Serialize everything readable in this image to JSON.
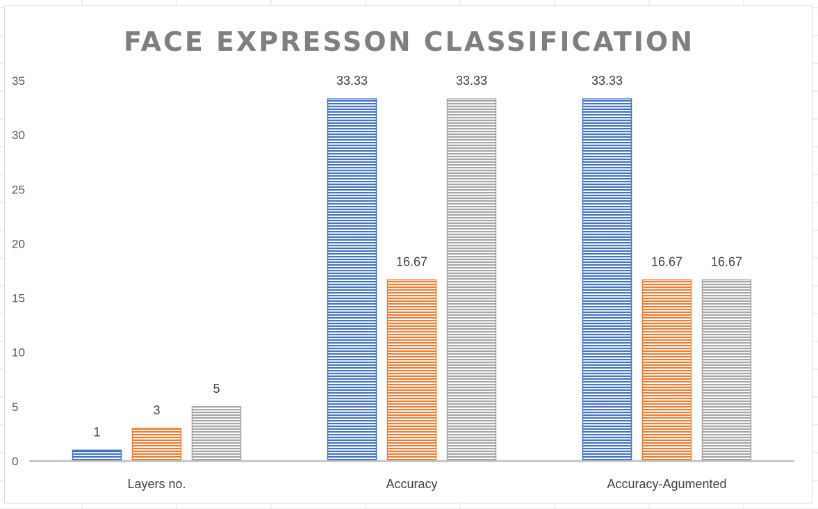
{
  "chart_data": {
    "type": "bar",
    "title": "FACE EXPRESSON CLASSIFICATION",
    "categories": [
      "Layers no.",
      "Accuracy",
      "Accuracy-Agumented"
    ],
    "series": [
      {
        "values": [
          1,
          33.33,
          33.33
        ],
        "color": "#4472c4"
      },
      {
        "values": [
          3,
          16.67,
          16.67
        ],
        "color": "#ed7d31"
      },
      {
        "values": [
          5,
          33.33,
          16.67
        ],
        "color": "#a5a5a5"
      }
    ],
    "data_labels": [
      [
        "1",
        "33.33",
        "33.33"
      ],
      [
        "3",
        "16.67",
        "16.67"
      ],
      [
        "5",
        "33.33",
        "16.67"
      ]
    ],
    "yticks": [
      "0",
      "5",
      "10",
      "15",
      "20",
      "25",
      "30",
      "35"
    ],
    "ylim": [
      0,
      35
    ],
    "gridlines": false,
    "bar_pattern": "horizontal-stripes",
    "xlabel": "",
    "ylabel": ""
  }
}
